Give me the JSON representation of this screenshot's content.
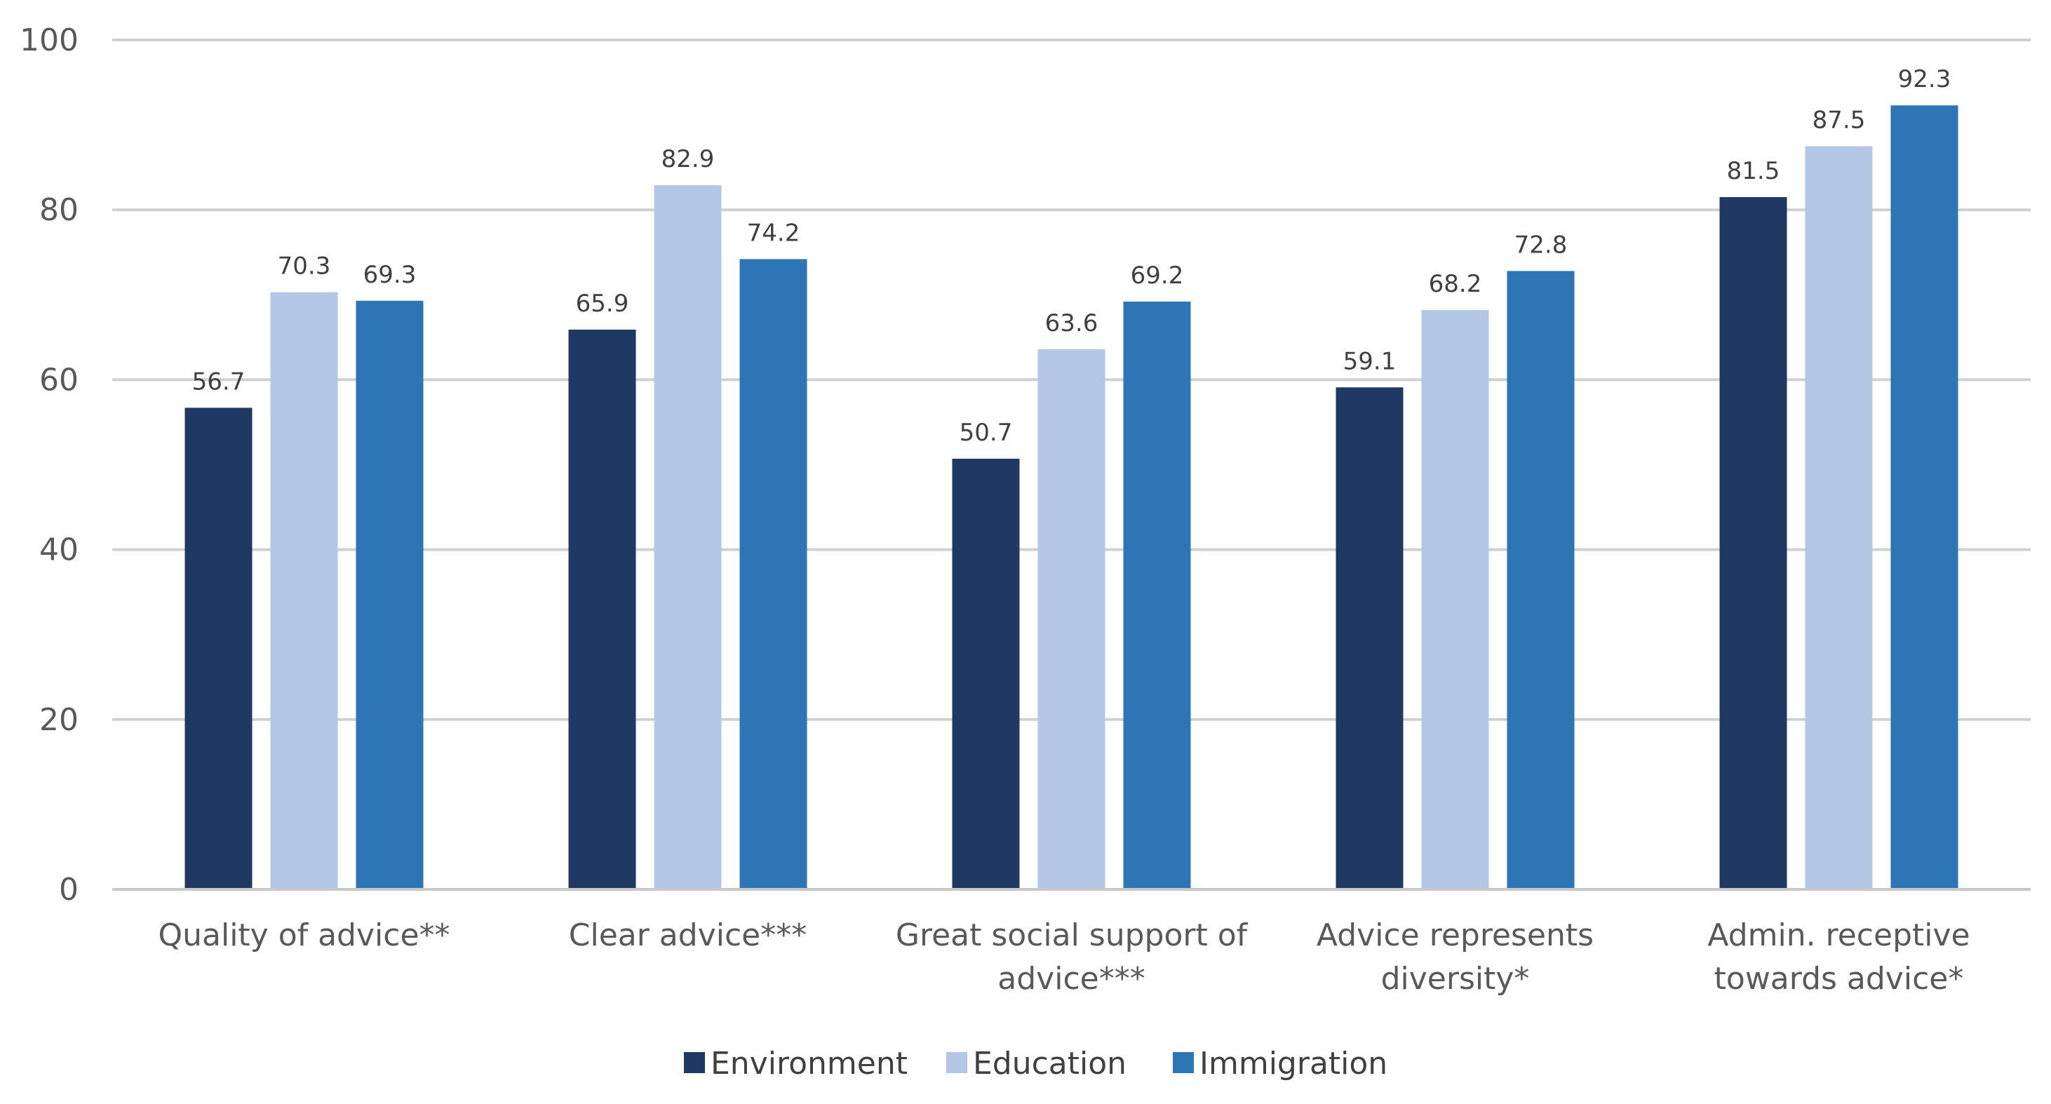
{
  "chart_data": {
    "type": "bar",
    "title": "",
    "xlabel": "",
    "ylabel": "",
    "ylim": [
      0,
      100
    ],
    "yticks": [
      0,
      20,
      40,
      60,
      80,
      100
    ],
    "grid": true,
    "legend_position": "bottom",
    "categories": [
      [
        "Quality of advice**"
      ],
      [
        "Clear advice***"
      ],
      [
        "Great social support of",
        "advice***"
      ],
      [
        "Advice represents",
        "diversity*"
      ],
      [
        "Admin. receptive",
        "towards advice*"
      ]
    ],
    "series": [
      {
        "name": "Environment",
        "color": "#203864",
        "values": [
          56.7,
          65.9,
          50.7,
          59.1,
          81.5
        ]
      },
      {
        "name": "Education",
        "color": "#b4c7e7",
        "values": [
          70.3,
          82.9,
          63.6,
          68.2,
          87.5
        ]
      },
      {
        "name": "Immigration",
        "color": "#2e75b6",
        "values": [
          69.3,
          74.2,
          69.2,
          72.8,
          92.3
        ]
      }
    ]
  }
}
